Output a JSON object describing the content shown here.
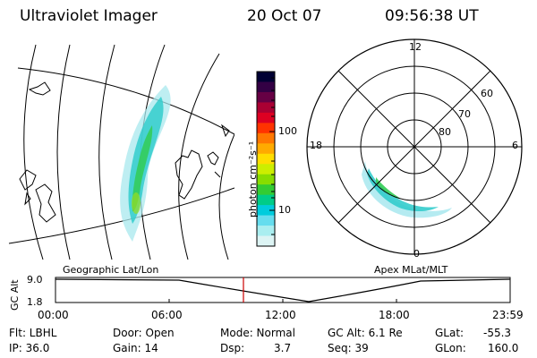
{
  "header": {
    "instrument": "Ultraviolet Imager",
    "date": "20 Oct 07",
    "time": "09:56:38 UT"
  },
  "geo_panel": {
    "label": "Geographic Lat/Lon"
  },
  "polar_panel": {
    "label": "Apex MLat/MLT",
    "mlt_labels": {
      "top": "12",
      "right": "6",
      "bottom": "0",
      "left": "18"
    },
    "lat_labels": [
      "60",
      "70",
      "80"
    ]
  },
  "colorbar": {
    "unit_label": "photon cm⁻²s⁻¹",
    "ticks": [
      "100",
      "10"
    ],
    "scale": "log",
    "colors": [
      "#000033",
      "#330044",
      "#660044",
      "#aa0033",
      "#dd0022",
      "#ff3300",
      "#ff7700",
      "#ffaa00",
      "#ffdd00",
      "#ccee00",
      "#88dd00",
      "#33cc33",
      "#00cc88",
      "#00ccdd",
      "#66ddee",
      "#aaeef0",
      "#ddf4f4"
    ]
  },
  "altitude_plot": {
    "axis_label": "GC Alt",
    "y_ticks": [
      "9.0",
      "1.8"
    ],
    "x_ticks": [
      "00:00",
      "06:00",
      "12:00",
      "18:00",
      "23:59"
    ],
    "current_time_marker_color": "#cc0000"
  },
  "status": {
    "flt": "Flt: LBHL",
    "ip": "IP: 36.0",
    "door": "Door: Open",
    "gain": "Gain: 14",
    "mode": "Mode: Normal",
    "dsp_label": "Dsp:",
    "dsp_value": "3.7",
    "gc_alt": "GC Alt: 6.1 Re",
    "seq": "Seq: 39",
    "glat_label": "GLat:",
    "glat_value": "-55.3",
    "glon_label": "GLon:",
    "glon_value": "160.0"
  }
}
